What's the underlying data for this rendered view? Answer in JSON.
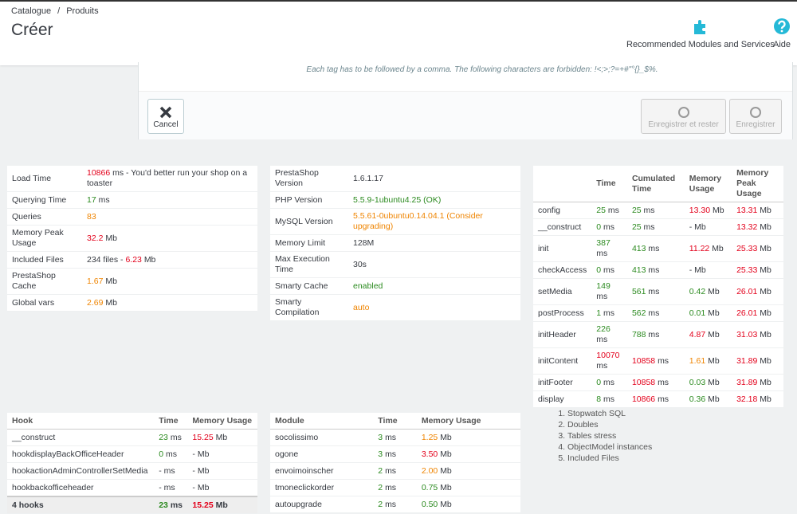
{
  "header": {
    "breadcrumb": [
      "Catalogue",
      "Produits"
    ],
    "separator": "/",
    "title": "Créer",
    "toolbar": [
      "Recommended Modules and Services",
      "Aide"
    ]
  },
  "form": {
    "hint": "Each tag has to be followed by a comma. The following characters are forbidden: !<;>;?=+#\"°{}_$%.",
    "cancel": "Cancel",
    "save_stay": "Enregistrer et rester",
    "save": "Enregistrer"
  },
  "tables": [
    {
      "rows": [
        [
          "Load Time",
          [
            {
              "text": "10866",
              "color": "#e3001b"
            },
            "ms - You'd better run your shop on a toaster"
          ]
        ],
        [
          "Querying Time",
          [
            {
              "text": "17",
              "color": "#2b8a1f"
            },
            "ms"
          ]
        ],
        [
          "Queries",
          [
            {
              "text": "83",
              "color": "#ef8400"
            }
          ]
        ],
        [
          "Memory Peak Usage",
          [
            {
              "text": "32.2",
              "color": "#e3001b"
            },
            "Mb"
          ]
        ],
        [
          "Included Files",
          [
            "234 files -",
            {
              "text": "6.23",
              "color": "#e3001b"
            },
            "Mb"
          ]
        ],
        [
          "PrestaShop Cache",
          [
            {
              "text": "1.67",
              "color": "#ef8400"
            },
            "Mb"
          ]
        ],
        [
          "Global vars",
          [
            {
              "text": "2.69",
              "color": "#ef8400"
            },
            "Mb"
          ]
        ]
      ]
    },
    {
      "rows": [
        [
          "PrestaShop Version",
          "1.6.1.17"
        ],
        [
          "PHP Version",
          [
            {
              "text": "5.5.9-1ubuntu4.25 (OK)",
              "color": "#2b8a1f"
            }
          ]
        ],
        [
          "MySQL Version",
          [
            {
              "text": "5.5.61-0ubuntu0.14.04.1 (Consider upgrading)",
              "color": "#ef8400"
            }
          ]
        ],
        [
          "Memory Limit",
          "128M"
        ],
        [
          "Max Execution Time",
          "30s"
        ],
        [
          "Smarty Cache",
          [
            {
              "text": "enabled",
              "color": "#2b8a1f"
            }
          ]
        ],
        [
          "Smarty Compilation",
          [
            {
              "text": "auto",
              "color": "#ef8400"
            }
          ]
        ]
      ]
    },
    {
      "columns": [
        "Time",
        "Cumulated Time",
        "Memory Usage",
        "Memory Peak Usage"
      ],
      "rows": [
        [
          "config",
          [
            {
              "text": "25",
              "color": "#2b8a1f"
            },
            "ms"
          ],
          [
            {
              "text": "25",
              "color": "#2b8a1f"
            },
            "ms"
          ],
          [
            {
              "text": "13.30",
              "color": "#e3001b"
            },
            "Mb"
          ],
          [
            {
              "text": "13.31",
              "color": "#e3001b"
            },
            "Mb"
          ]
        ],
        [
          "__construct",
          [
            {
              "text": "0",
              "color": "#2b8a1f"
            },
            "ms"
          ],
          [
            {
              "text": "25",
              "color": "#2b8a1f"
            },
            "ms"
          ],
          [
            "- Mb"
          ],
          [
            {
              "text": "13.32",
              "color": "#e3001b"
            },
            "Mb"
          ]
        ],
        [
          "init",
          [
            {
              "text": "387",
              "color": "#2b8a1f"
            },
            "ms"
          ],
          [
            {
              "text": "413",
              "color": "#2b8a1f"
            },
            "ms"
          ],
          [
            {
              "text": "11.22",
              "color": "#e3001b"
            },
            "Mb"
          ],
          [
            {
              "text": "25.33",
              "color": "#e3001b"
            },
            "Mb"
          ]
        ],
        [
          "checkAccess",
          [
            {
              "text": "0",
              "color": "#2b8a1f"
            },
            "ms"
          ],
          [
            {
              "text": "413",
              "color": "#2b8a1f"
            },
            "ms"
          ],
          [
            "- Mb"
          ],
          [
            {
              "text": "25.33",
              "color": "#e3001b"
            },
            "Mb"
          ]
        ],
        [
          "setMedia",
          [
            {
              "text": "149",
              "color": "#2b8a1f"
            },
            "ms"
          ],
          [
            {
              "text": "561",
              "color": "#2b8a1f"
            },
            "ms"
          ],
          [
            {
              "text": "0.42",
              "color": "#2b8a1f"
            },
            "Mb"
          ],
          [
            {
              "text": "26.01",
              "color": "#e3001b"
            },
            "Mb"
          ]
        ],
        [
          "postProcess",
          [
            {
              "text": "1",
              "color": "#2b8a1f"
            },
            "ms"
          ],
          [
            {
              "text": "562",
              "color": "#2b8a1f"
            },
            "ms"
          ],
          [
            {
              "text": "0.01",
              "color": "#2b8a1f"
            },
            "Mb"
          ],
          [
            {
              "text": "26.01",
              "color": "#e3001b"
            },
            "Mb"
          ]
        ],
        [
          "initHeader",
          [
            {
              "text": "226",
              "color": "#2b8a1f"
            },
            "ms"
          ],
          [
            {
              "text": "788",
              "color": "#2b8a1f"
            },
            "ms"
          ],
          [
            {
              "text": "4.87",
              "color": "#e3001b"
            },
            "Mb"
          ],
          [
            {
              "text": "31.03",
              "color": "#e3001b"
            },
            "Mb"
          ]
        ],
        [
          "initContent",
          [
            {
              "text": "10070",
              "color": "#e3001b"
            },
            "ms"
          ],
          [
            {
              "text": "10858",
              "color": "#e3001b"
            },
            "ms"
          ],
          [
            {
              "text": "1.61",
              "color": "#ef8400"
            },
            "Mb"
          ],
          [
            {
              "text": "31.89",
              "color": "#e3001b"
            },
            "Mb"
          ]
        ],
        [
          "initFooter",
          [
            {
              "text": "0",
              "color": "#2b8a1f"
            },
            "ms"
          ],
          [
            {
              "text": "10858",
              "color": "#e3001b"
            },
            "ms"
          ],
          [
            {
              "text": "0.03",
              "color": "#2b8a1f"
            },
            "Mb"
          ],
          [
            {
              "text": "31.89",
              "color": "#e3001b"
            },
            "Mb"
          ]
        ],
        [
          "display",
          [
            {
              "text": "8",
              "color": "#2b8a1f"
            },
            "ms"
          ],
          [
            {
              "text": "10866",
              "color": "#e3001b"
            },
            "ms"
          ],
          [
            {
              "text": "0.36",
              "color": "#2b8a1f"
            },
            "Mb"
          ],
          [
            {
              "text": "32.18",
              "color": "#e3001b"
            },
            "Mb"
          ]
        ]
      ]
    },
    {
      "columns": [
        "Hook",
        "Time",
        "Memory Usage"
      ],
      "rows": [
        [
          "__construct",
          [
            {
              "text": "23",
              "color": "#2b8a1f"
            },
            "ms"
          ],
          [
            {
              "text": "15.25",
              "color": "#e3001b"
            },
            "Mb"
          ]
        ],
        [
          "hookdisplayBackOfficeHeader",
          [
            {
              "text": "0",
              "color": "#2b8a1f"
            },
            "ms"
          ],
          [
            "- Mb"
          ]
        ],
        [
          "hookactionAdminControllerSetMedia",
          [
            "- ms"
          ],
          [
            "- Mb"
          ]
        ],
        [
          "hookbackofficeheader",
          [
            "- ms"
          ],
          [
            "- Mb"
          ]
        ]
      ],
      "footer": [
        "4 hooks",
        [
          {
            "text": "23",
            "color": "#2b8a1f"
          },
          "ms"
        ],
        [
          {
            "text": "15.25",
            "color": "#e3001b"
          },
          "Mb"
        ]
      ]
    },
    {
      "columns": [
        "Module",
        "Time",
        "Memory Usage"
      ],
      "rows": [
        [
          "socolissimo",
          [
            {
              "text": "3",
              "color": "#2b8a1f"
            },
            "ms"
          ],
          [
            {
              "text": "1.25",
              "color": "#ef8400"
            },
            "Mb"
          ]
        ],
        [
          "ogone",
          [
            {
              "text": "3",
              "color": "#2b8a1f"
            },
            "ms"
          ],
          [
            {
              "text": "3.50",
              "color": "#e3001b"
            },
            "Mb"
          ]
        ],
        [
          "envoimoinscher",
          [
            {
              "text": "2",
              "color": "#2b8a1f"
            },
            "ms"
          ],
          [
            {
              "text": "2.00",
              "color": "#ef8400"
            },
            "Mb"
          ]
        ],
        [
          "tmoneclickorder",
          [
            {
              "text": "2",
              "color": "#2b8a1f"
            },
            "ms"
          ],
          [
            {
              "text": "0.75",
              "color": "#2b8a1f"
            },
            "Mb"
          ]
        ],
        [
          "autoupgrade",
          [
            {
              "text": "2",
              "color": "#2b8a1f"
            },
            "ms"
          ],
          [
            {
              "text": "0.50",
              "color": "#2b8a1f"
            },
            "Mb"
          ]
        ]
      ]
    }
  ],
  "links": [
    "Stopwatch SQL",
    "Doubles",
    "Tables stress",
    "ObjectModel instances",
    "Included Files"
  ]
}
